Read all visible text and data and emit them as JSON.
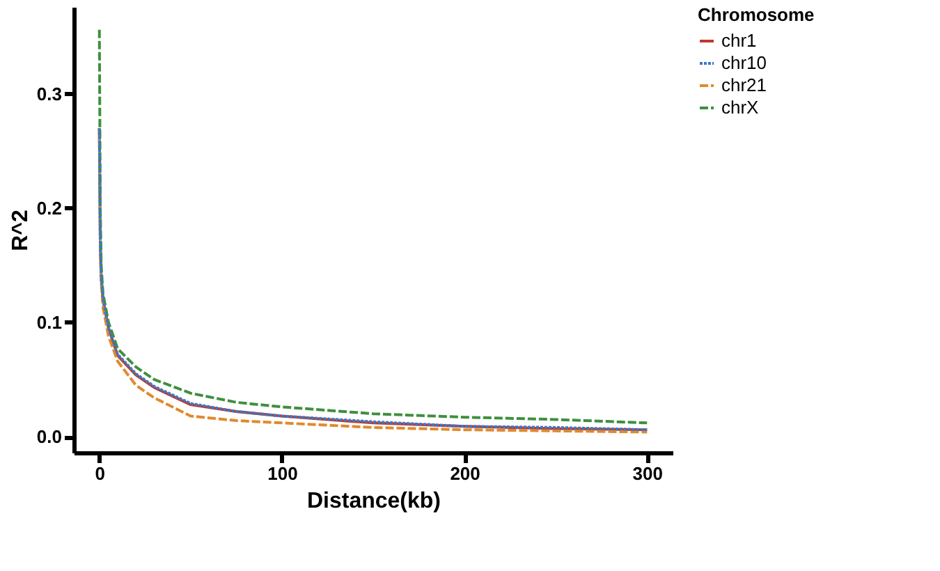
{
  "chart_data": {
    "type": "line",
    "xlabel": "Distance(kb)",
    "ylabel": "R^2",
    "legend_title": "Chromosome",
    "legend": "right",
    "xlim": [
      -14,
      314
    ],
    "ylim": [
      -0.014,
      0.376
    ],
    "xticks": [
      0,
      100,
      200,
      300
    ],
    "yticks": [
      {
        "value": 0,
        "label": "0.0"
      },
      {
        "value": 0.1,
        "label": "0.1"
      },
      {
        "value": 0.2,
        "label": "0.2"
      },
      {
        "value": 0.3,
        "label": "0.3"
      }
    ],
    "grid": false,
    "x": [
      0,
      0.5,
      1,
      2,
      5,
      10,
      20,
      30,
      50,
      75,
      100,
      150,
      200,
      250,
      300
    ],
    "series": [
      {
        "name": "chr1",
        "color": "#c0392b",
        "line_style": "solid",
        "values": [
          0.27,
          0.17,
          0.14,
          0.12,
          0.095,
          0.071,
          0.054,
          0.043,
          0.028,
          0.022,
          0.018,
          0.012,
          0.009,
          0.007,
          0.006
        ]
      },
      {
        "name": "chr10",
        "color": "#3a78c9",
        "line_style": "dotted",
        "values": [
          0.27,
          0.17,
          0.14,
          0.12,
          0.095,
          0.072,
          0.055,
          0.044,
          0.029,
          0.022,
          0.018,
          0.013,
          0.009,
          0.008,
          0.006
        ]
      },
      {
        "name": "chr21",
        "color": "#e08a2c",
        "line_style": "dashed",
        "values": [
          0.27,
          0.165,
          0.135,
          0.113,
          0.088,
          0.066,
          0.045,
          0.034,
          0.018,
          0.014,
          0.012,
          0.008,
          0.006,
          0.005,
          0.004
        ]
      },
      {
        "name": "chrX",
        "color": "#3f8f3f",
        "line_style": "dashed",
        "values": [
          0.356,
          0.2,
          0.15,
          0.125,
          0.1,
          0.077,
          0.061,
          0.05,
          0.038,
          0.03,
          0.026,
          0.02,
          0.017,
          0.015,
          0.012
        ]
      }
    ]
  }
}
